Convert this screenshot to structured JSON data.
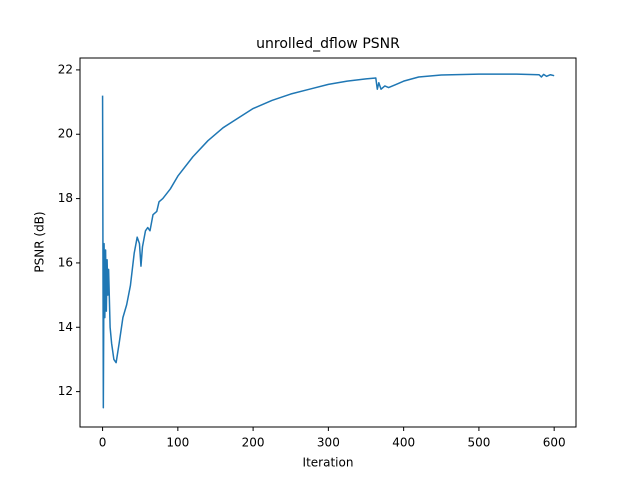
{
  "chart_data": {
    "type": "line",
    "title": "unrolled_dflow PSNR",
    "x_label": "Iteration",
    "y_label": "PSNR (dB)",
    "x": [
      0,
      1,
      2,
      3,
      4,
      5,
      6,
      7,
      8,
      10,
      12,
      15,
      18,
      22,
      27,
      32,
      37,
      42,
      46,
      49,
      51,
      53,
      57,
      60,
      63,
      67,
      72,
      75,
      80,
      90,
      100,
      120,
      140,
      160,
      180,
      200,
      225,
      250,
      275,
      300,
      325,
      350,
      363,
      365,
      367,
      370,
      375,
      380,
      390,
      400,
      420,
      450,
      500,
      550,
      580,
      583,
      586,
      590,
      595,
      600
    ],
    "series": [
      {
        "name": "PSNR",
        "color": "#1f77b4",
        "values": [
          21.2,
          11.5,
          16.6,
          14.3,
          16.4,
          14.5,
          16.1,
          15.0,
          15.8,
          14.0,
          13.5,
          13.0,
          12.9,
          13.5,
          14.3,
          14.7,
          15.3,
          16.3,
          16.8,
          16.6,
          15.9,
          16.5,
          17.0,
          17.1,
          17.0,
          17.5,
          17.6,
          17.9,
          18.0,
          18.3,
          18.7,
          19.3,
          19.8,
          20.2,
          20.5,
          20.8,
          21.05,
          21.25,
          21.4,
          21.55,
          21.65,
          21.72,
          21.75,
          21.4,
          21.6,
          21.4,
          21.5,
          21.45,
          21.55,
          21.65,
          21.78,
          21.84,
          21.87,
          21.87,
          21.85,
          21.78,
          21.86,
          21.8,
          21.85,
          21.82
        ]
      }
    ],
    "xlim": [
      -30,
      629
    ],
    "ylim": [
      10.9,
      22.37
    ],
    "xticks": [
      0,
      100,
      200,
      300,
      400,
      500,
      600
    ],
    "yticks": [
      12,
      14,
      16,
      18,
      20,
      22
    ]
  }
}
